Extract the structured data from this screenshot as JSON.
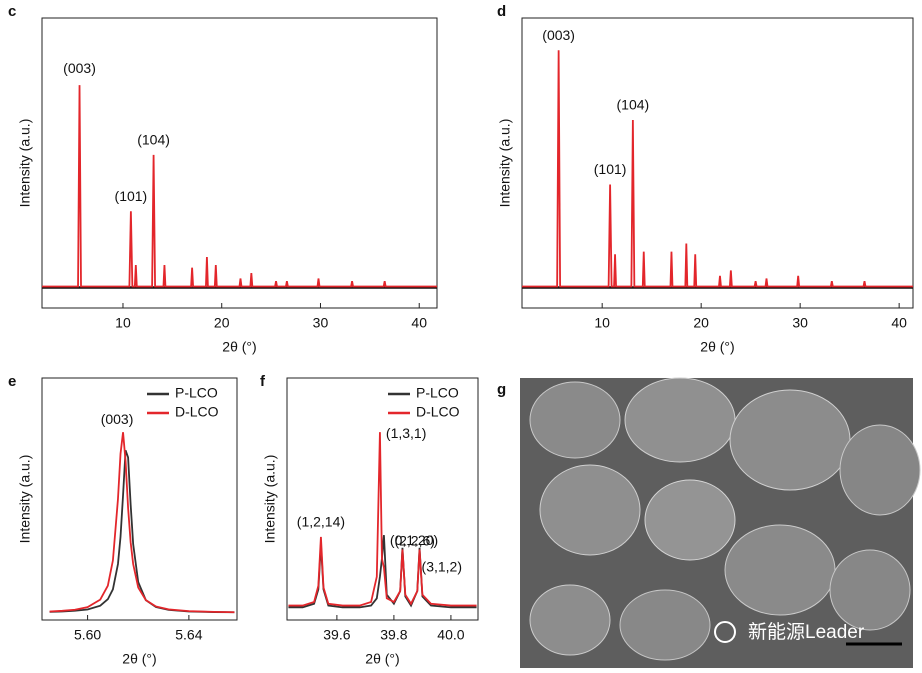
{
  "chart_data": [
    {
      "type": "line",
      "panel": "c",
      "xlabel": "2θ (°)",
      "ylabel": "Intensity (a.u.)",
      "color": "#e3262b",
      "x": [
        1.8,
        5.45,
        5.6,
        5.75,
        10.65,
        10.8,
        10.95,
        11.2,
        11.3,
        11.4,
        12.95,
        13.1,
        13.25,
        14.1,
        14.2,
        14.3,
        16.9,
        17.0,
        17.1,
        18.4,
        18.5,
        18.6,
        19.3,
        19.4,
        19.5,
        21.8,
        21.9,
        22.0,
        22.9,
        23.0,
        23.1,
        25.4,
        25.5,
        25.6,
        26.5,
        26.6,
        26.7,
        29.7,
        29.8,
        29.9,
        33.1,
        33.2,
        33.3,
        36.4,
        36.5,
        36.6,
        41.8
      ],
      "values": [
        0,
        0,
        75,
        0,
        0,
        28,
        0,
        0,
        8,
        0,
        0,
        49,
        0,
        0,
        8,
        0,
        0,
        7,
        0,
        0,
        11,
        0,
        0,
        8,
        0,
        0,
        3,
        0,
        0,
        5,
        0,
        0,
        2,
        0,
        0,
        2,
        0,
        0,
        3,
        0,
        0,
        2,
        0,
        0,
        2,
        0,
        0
      ],
      "xlim": [
        1.8,
        41.8
      ],
      "xticks": [
        10,
        20,
        30,
        40
      ],
      "ylim": [
        -8,
        100
      ],
      "annotations": [
        {
          "text": "(003)",
          "x": 5.6
        },
        {
          "text": "(101)",
          "x": 10.8
        },
        {
          "text": "(104)",
          "x": 13.1
        }
      ]
    },
    {
      "type": "line",
      "panel": "d",
      "xlabel": "2θ (°)",
      "ylabel": "Intensity (a.u.)",
      "color": "#e3262b",
      "x": [
        1.9,
        5.45,
        5.6,
        5.75,
        10.65,
        10.8,
        10.95,
        11.2,
        11.3,
        11.4,
        12.95,
        13.1,
        13.25,
        14.1,
        14.2,
        14.3,
        16.9,
        17.0,
        17.1,
        18.4,
        18.5,
        18.6,
        19.3,
        19.4,
        19.5,
        21.8,
        21.9,
        22.0,
        22.9,
        23.0,
        23.1,
        25.4,
        25.5,
        25.6,
        26.5,
        26.6,
        26.7,
        29.7,
        29.8,
        29.9,
        33.1,
        33.2,
        33.3,
        36.4,
        36.5,
        36.6,
        41.4
      ],
      "values": [
        0,
        0,
        88,
        0,
        0,
        38,
        0,
        0,
        12,
        0,
        0,
        62,
        0,
        0,
        13,
        0,
        0,
        13,
        0,
        0,
        16,
        0,
        0,
        12,
        0,
        0,
        4,
        0,
        0,
        6,
        0,
        0,
        2,
        0,
        0,
        3,
        0,
        0,
        4,
        0,
        0,
        2,
        0,
        0,
        2,
        0,
        0
      ],
      "xlim": [
        1.9,
        41.4
      ],
      "xticks": [
        10,
        20,
        30,
        40
      ],
      "ylim": [
        -8,
        100
      ],
      "annotations": [
        {
          "text": "(003)",
          "x": 5.6
        },
        {
          "text": "(101)",
          "x": 10.8
        },
        {
          "text": "(104)",
          "x": 13.1
        }
      ]
    },
    {
      "type": "line",
      "panel": "e",
      "xlabel": "2θ (°)",
      "ylabel": "Intensity (a.u.)",
      "legend": "upper right",
      "x": [
        5.585,
        5.59,
        5.595,
        5.6,
        5.605,
        5.608,
        5.61,
        5.612,
        5.613,
        5.614,
        5.615,
        5.616,
        5.617,
        5.618,
        5.62,
        5.623,
        5.627,
        5.632,
        5.64,
        5.65,
        5.658
      ],
      "series": [
        {
          "name": "P-LCO",
          "color": "#333333",
          "values": [
            0.5,
            0.7,
            1.1,
            1.8,
            3.9,
            7.5,
            13,
            27,
            42,
            65,
            90,
            86,
            60,
            38,
            17,
            7,
            3.2,
            1.6,
            0.7,
            0.4,
            0.3
          ]
        },
        {
          "name": "D-LCO",
          "color": "#e3262b",
          "values": [
            0.7,
            1.1,
            1.7,
            3.1,
            7.3,
            15,
            29,
            63,
            88,
            100,
            84,
            58,
            39,
            27,
            14,
            7,
            3.5,
            1.9,
            0.9,
            0.5,
            0.3
          ]
        }
      ],
      "xlim": [
        5.582,
        5.659
      ],
      "xticks": [
        {
          "value": 5.6,
          "label": "5.60"
        },
        5.64
      ],
      "ylim": [
        -4,
        130
      ],
      "annotations": [
        {
          "text": "(003)",
          "x": 5.614
        }
      ]
    },
    {
      "type": "line",
      "panel": "f",
      "xlabel": "2θ (°)",
      "ylabel": "Intensity (a.u.)",
      "legend": "upper right",
      "x": [
        39.43,
        39.48,
        39.52,
        39.535,
        39.544,
        39.553,
        39.57,
        39.62,
        39.68,
        39.72,
        39.74,
        39.751,
        39.758,
        39.765,
        39.775,
        39.8,
        39.822,
        39.83,
        39.84,
        39.86,
        39.882,
        39.89,
        39.9,
        39.93,
        40.0,
        40.09
      ],
      "series": [
        {
          "name": "P-LCO",
          "color": "#333333",
          "values": [
            3,
            3,
            5,
            13,
            38,
            13,
            4,
            3,
            3,
            4,
            8,
            20,
            30,
            43,
            10,
            5,
            12,
            36,
            9,
            4,
            12,
            36,
            9,
            4,
            3,
            3
          ]
        },
        {
          "name": "D-LCO",
          "color": "#e3262b",
          "values": [
            4,
            4,
            6,
            15,
            42,
            14,
            5,
            4,
            4,
            6,
            20,
            100,
            30,
            25,
            8,
            6,
            12,
            35,
            10,
            5,
            12,
            35,
            10,
            5,
            4,
            4
          ]
        }
      ],
      "xlim": [
        39.425,
        40.095
      ],
      "xticks": [
        39.6,
        39.8,
        {
          "value": 40.0,
          "label": "40.0"
        }
      ],
      "ylim": [
        -4,
        130
      ],
      "annotations": [
        {
          "text": "(1,2,14)",
          "x": 39.544
        },
        {
          "text": "(1,3,1)",
          "x": 39.751
        },
        {
          "text": "(0,1,20)",
          "x": 39.765
        },
        {
          "text": "(2,2,6)",
          "x": 39.83
        },
        {
          "text": "(3,1,2)",
          "x": 39.89
        }
      ]
    }
  ],
  "image": {
    "panel": "g",
    "watermark": "新能源Leader"
  }
}
